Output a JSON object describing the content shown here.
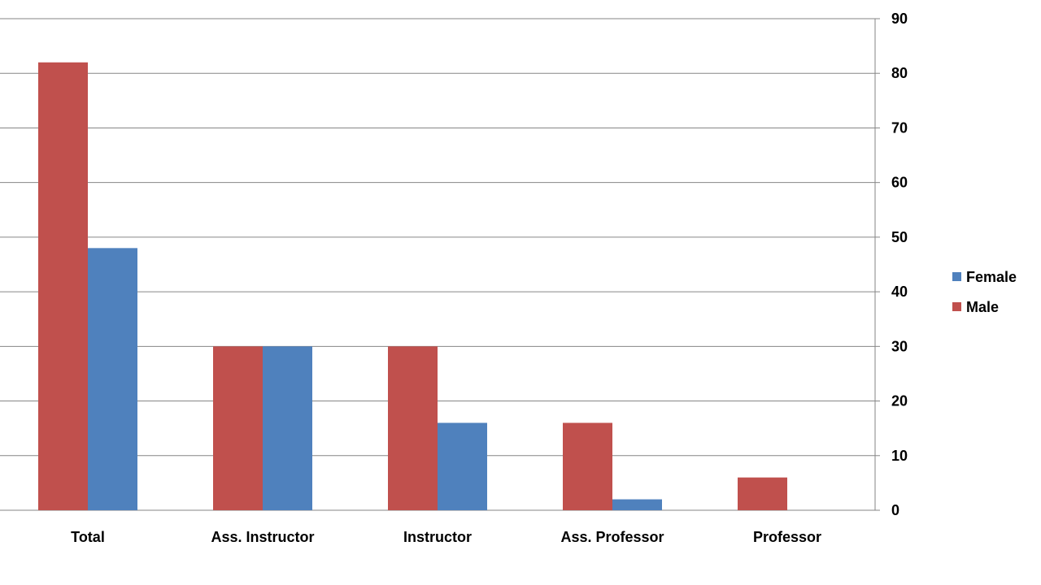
{
  "chart_data": {
    "type": "bar",
    "title": "",
    "xlabel": "",
    "ylabel": "",
    "categories": [
      "Total",
      "Ass. Instructor",
      "Instructor",
      "Ass. Professor",
      "Professor"
    ],
    "series": [
      {
        "name": "Male",
        "color": "#c0504d",
        "values": [
          82,
          30,
          30,
          16,
          6
        ]
      },
      {
        "name": "Female",
        "color": "#4f81bd",
        "values": [
          48,
          30,
          16,
          2,
          0
        ]
      }
    ],
    "ylim": [
      0,
      90
    ],
    "yticks": [
      0,
      10,
      20,
      30,
      40,
      50,
      60,
      70,
      80,
      90
    ],
    "y_axis_side": "right",
    "grid": true,
    "legend": {
      "placement": "right",
      "entries": [
        {
          "name": "Female",
          "color": "#4f81bd"
        },
        {
          "name": "Male",
          "color": "#c0504d"
        }
      ]
    }
  }
}
